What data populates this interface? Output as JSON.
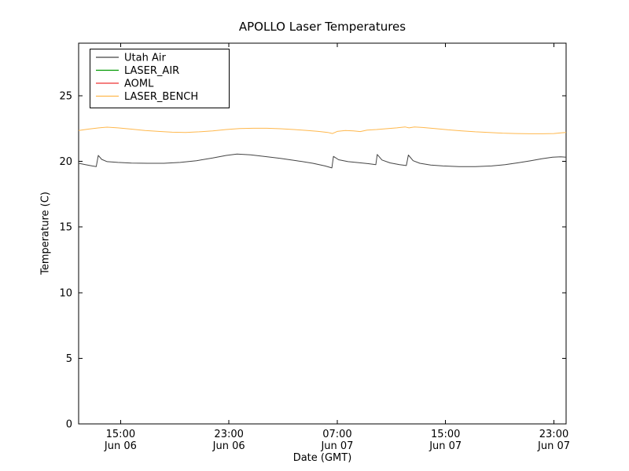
{
  "chart_data": {
    "type": "line",
    "title": "APOLLO Laser Temperatures",
    "xlabel": "Date (GMT)",
    "ylabel": "Temperature (C)",
    "background_color": "#ffffff",
    "grid": false,
    "x_unit": "hours since Jun 06 00:00 GMT",
    "xlim": [
      11.9,
      47.9
    ],
    "ylim": [
      0,
      29
    ],
    "yticks": [
      0,
      5,
      10,
      15,
      20,
      25
    ],
    "xticks": [
      {
        "value": 15,
        "time": "15:00",
        "date": "Jun 06"
      },
      {
        "value": 23,
        "time": "23:00",
        "date": "Jun 06"
      },
      {
        "value": 31,
        "time": "07:00",
        "date": "Jun 07"
      },
      {
        "value": 39,
        "time": "15:00",
        "date": "Jun 07"
      },
      {
        "value": 47,
        "time": "23:00",
        "date": "Jun 07"
      }
    ],
    "legend": {
      "position": "upper left",
      "entries": [
        "Utah Air",
        "LASER_AIR",
        "AOML",
        "LASER_BENCH"
      ]
    },
    "series": [
      {
        "name": "Utah Air",
        "color": "#444444",
        "visible_in_plot": true,
        "points": [
          [
            11.9,
            19.85
          ],
          [
            12.4,
            19.75
          ],
          [
            12.9,
            19.65
          ],
          [
            13.2,
            19.6
          ],
          [
            13.35,
            20.45
          ],
          [
            13.6,
            20.15
          ],
          [
            14.0,
            19.98
          ],
          [
            14.8,
            19.92
          ],
          [
            15.8,
            19.87
          ],
          [
            17.0,
            19.85
          ],
          [
            18.2,
            19.85
          ],
          [
            19.4,
            19.92
          ],
          [
            20.6,
            20.05
          ],
          [
            21.8,
            20.25
          ],
          [
            22.8,
            20.45
          ],
          [
            23.6,
            20.55
          ],
          [
            24.6,
            20.5
          ],
          [
            25.6,
            20.38
          ],
          [
            26.8,
            20.22
          ],
          [
            28.0,
            20.05
          ],
          [
            29.2,
            19.85
          ],
          [
            30.1,
            19.65
          ],
          [
            30.6,
            19.5
          ],
          [
            30.72,
            20.38
          ],
          [
            31.1,
            20.12
          ],
          [
            31.8,
            19.98
          ],
          [
            32.6,
            19.9
          ],
          [
            33.3,
            19.82
          ],
          [
            33.85,
            19.75
          ],
          [
            33.95,
            20.52
          ],
          [
            34.3,
            20.1
          ],
          [
            34.9,
            19.88
          ],
          [
            35.6,
            19.75
          ],
          [
            36.1,
            19.68
          ],
          [
            36.25,
            20.48
          ],
          [
            36.6,
            20.05
          ],
          [
            37.1,
            19.85
          ],
          [
            37.9,
            19.72
          ],
          [
            38.8,
            19.65
          ],
          [
            40.0,
            19.6
          ],
          [
            41.2,
            19.6
          ],
          [
            42.4,
            19.65
          ],
          [
            43.4,
            19.75
          ],
          [
            44.4,
            19.9
          ],
          [
            45.3,
            20.05
          ],
          [
            46.1,
            20.2
          ],
          [
            46.9,
            20.32
          ],
          [
            47.5,
            20.35
          ],
          [
            47.9,
            20.32
          ]
        ]
      },
      {
        "name": "LASER_AIR",
        "color": "#009900",
        "visible_in_plot": false,
        "points": []
      },
      {
        "name": "AOML",
        "color": "#ee3333",
        "visible_in_plot": false,
        "points": []
      },
      {
        "name": "LASER_BENCH",
        "color": "#ffb84d",
        "visible_in_plot": true,
        "points": [
          [
            11.9,
            22.35
          ],
          [
            12.6,
            22.45
          ],
          [
            13.4,
            22.55
          ],
          [
            14.0,
            22.6
          ],
          [
            14.8,
            22.55
          ],
          [
            15.8,
            22.45
          ],
          [
            16.8,
            22.35
          ],
          [
            17.8,
            22.28
          ],
          [
            18.8,
            22.22
          ],
          [
            19.8,
            22.2
          ],
          [
            20.8,
            22.25
          ],
          [
            21.8,
            22.32
          ],
          [
            22.8,
            22.42
          ],
          [
            23.8,
            22.5
          ],
          [
            24.8,
            22.52
          ],
          [
            25.8,
            22.52
          ],
          [
            26.8,
            22.48
          ],
          [
            27.8,
            22.42
          ],
          [
            28.8,
            22.35
          ],
          [
            29.6,
            22.28
          ],
          [
            30.3,
            22.2
          ],
          [
            30.65,
            22.12
          ],
          [
            31.0,
            22.28
          ],
          [
            31.6,
            22.35
          ],
          [
            32.2,
            22.32
          ],
          [
            32.7,
            22.27
          ],
          [
            33.2,
            22.38
          ],
          [
            33.9,
            22.42
          ],
          [
            34.6,
            22.48
          ],
          [
            35.4,
            22.55
          ],
          [
            36.0,
            22.62
          ],
          [
            36.3,
            22.55
          ],
          [
            36.7,
            22.62
          ],
          [
            37.3,
            22.58
          ],
          [
            38.2,
            22.5
          ],
          [
            39.2,
            22.4
          ],
          [
            40.2,
            22.32
          ],
          [
            41.2,
            22.25
          ],
          [
            42.2,
            22.2
          ],
          [
            43.2,
            22.15
          ],
          [
            44.2,
            22.12
          ],
          [
            45.2,
            22.1
          ],
          [
            46.2,
            22.1
          ],
          [
            47.0,
            22.12
          ],
          [
            47.6,
            22.18
          ],
          [
            47.9,
            22.2
          ]
        ]
      }
    ]
  }
}
